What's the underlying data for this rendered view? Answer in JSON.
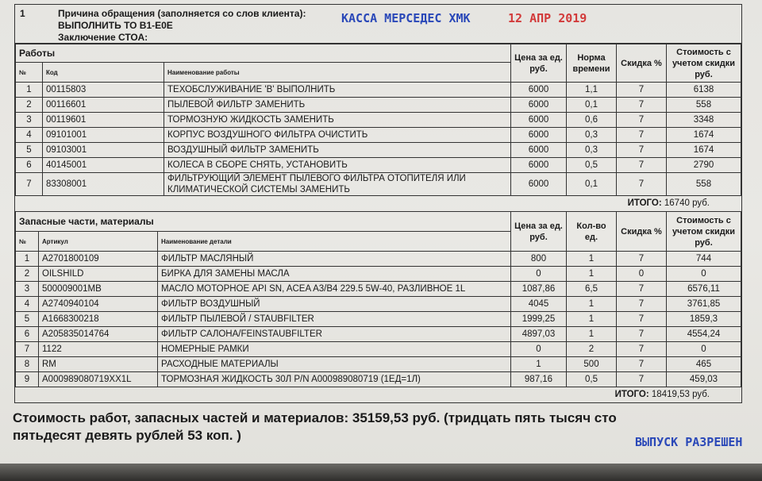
{
  "section1": {
    "number": "1",
    "reason_label": "Причина обращения (заполняется со слов клиента):",
    "reason_value": "ВЫПОЛНИТЬ ТО В1-Е0Е",
    "conclusion_label": "Заключение СТОА:"
  },
  "works": {
    "title": "Работы",
    "headers": {
      "num": "№",
      "code": "Код",
      "name": "Наименование работы",
      "price": "Цена за ед. руб.",
      "norm": "Норма времени",
      "discount": "Скидка %",
      "cost": "Стоимость с учетом скидки руб."
    },
    "rows": [
      [
        "1",
        "00115803",
        "ТЕХОБСЛУЖИВАНИЕ 'В' ВЫПОЛНИТЬ",
        "6000",
        "1,1",
        "7",
        "6138"
      ],
      [
        "2",
        "00116601",
        "ПЫЛЕВОЙ ФИЛЬТР ЗАМЕНИТЬ",
        "6000",
        "0,1",
        "7",
        "558"
      ],
      [
        "3",
        "00119601",
        "ТОРМОЗНУЮ ЖИДКОСТЬ ЗАМЕНИТЬ",
        "6000",
        "0,6",
        "7",
        "3348"
      ],
      [
        "4",
        "09101001",
        "КОРПУС ВОЗДУШНОГО ФИЛЬТРА ОЧИСТИТЬ",
        "6000",
        "0,3",
        "7",
        "1674"
      ],
      [
        "5",
        "09103001",
        "ВОЗДУШНЫЙ ФИЛЬТР ЗАМЕНИТЬ",
        "6000",
        "0,3",
        "7",
        "1674"
      ],
      [
        "6",
        "40145001",
        "КОЛЕСА В СБОРЕ СНЯТЬ, УСТАНОВИТЬ",
        "6000",
        "0,5",
        "7",
        "2790"
      ],
      [
        "7",
        "83308001",
        "ФИЛЬТРУЮЩИЙ ЭЛЕМЕНТ ПЫЛЕВОГО ФИЛЬТРА ОТОПИТЕЛЯ ИЛИ КЛИМАТИЧЕСКОЙ СИСТЕМЫ ЗАМЕНИТЬ",
        "6000",
        "0,1",
        "7",
        "558"
      ]
    ],
    "total_label": "ИТОГО:",
    "total_value": "16740 руб."
  },
  "parts": {
    "title": "Запасные части, материалы",
    "headers": {
      "num": "№",
      "article": "Артикул",
      "name": "Наименование детали",
      "price": "Цена за ед. руб.",
      "qty": "Кол-во ед.",
      "discount": "Скидка %",
      "cost": "Стоимость с учетом скидки руб."
    },
    "rows": [
      [
        "1",
        "A2701800109",
        "ФИЛЬТР МАСЛЯНЫЙ",
        "800",
        "1",
        "7",
        "744"
      ],
      [
        "2",
        "OILSHILD",
        "БИРКА ДЛЯ ЗАМЕНЫ МАСЛА",
        "0",
        "1",
        "0",
        "0"
      ],
      [
        "3",
        "500009001MB",
        "МАСЛО МОТОРНОЕ  API SN, ACEA A3/B4  229.5  5W-40, РАЗЛИВНОЕ 1L",
        "1087,86",
        "6,5",
        "7",
        "6576,11"
      ],
      [
        "4",
        "A2740940104",
        "ФИЛЬТР ВОЗДУШНЫЙ",
        "4045",
        "1",
        "7",
        "3761,85"
      ],
      [
        "5",
        "A1668300218",
        "ФИЛЬТР ПЫЛЕВОЙ / STAUBFILTER",
        "1999,25",
        "1",
        "7",
        "1859,3"
      ],
      [
        "6",
        "A205835014764",
        "ФИЛЬТР САЛОНА/FEINSTAUBFILTER",
        "4897,03",
        "1",
        "7",
        "4554,24"
      ],
      [
        "7",
        "1122",
        "НОМЕРНЫЕ РАМКИ",
        "0",
        "2",
        "7",
        "0"
      ],
      [
        "8",
        "RM",
        "РАСХОДНЫЕ МАТЕРИАЛЫ",
        "1",
        "500",
        "7",
        "465"
      ],
      [
        "9",
        "A000989080719XX1L",
        "ТОРМОЗНАЯ ЖИДКОСТЬ 30Л P/N A000989080719 (1ЕД=1Л)",
        "987,16",
        "0,5",
        "7",
        "459,03"
      ]
    ],
    "total_label": "ИТОГО:",
    "total_value": "18419,53 руб."
  },
  "summary": "Стоимость работ, запасных частей и материалов: 35159,53 руб. (тридцать пять тысяч сто пятьдесят девять рублей 53 коп. )",
  "stamps": {
    "cashier": "КАССА МЕРСЕДЕС ХМК",
    "date": "12 АПР 2019",
    "release": "ВЫПУСК РАЗРЕШЕН"
  },
  "colors": {
    "paper": "#e6e5e1",
    "ink": "#1a1a1a",
    "stamp_blue": "#2a48b8",
    "stamp_red": "#d23a3a"
  }
}
